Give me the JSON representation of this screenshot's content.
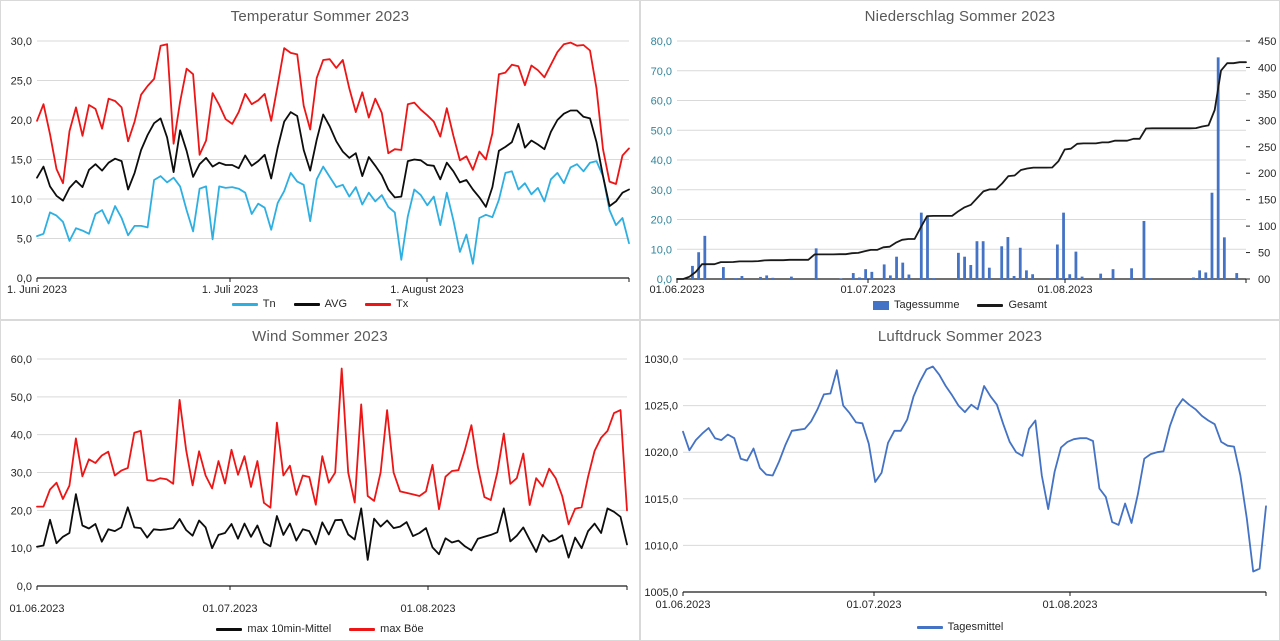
{
  "chart_data": [
    {
      "id": "temperatur",
      "type": "line",
      "title": "Temperatur Sommer 2023",
      "x_tick_labels": [
        "1. Juni 2023",
        "1. Juli 2023",
        "1. August 2023"
      ],
      "x_range": "01.06.2023 - 31.08.2023",
      "y_axis": {
        "min": 0,
        "max": 30,
        "step": 5,
        "format": "de1"
      },
      "grid": true,
      "legend_position": "bottom",
      "series": [
        {
          "name": "Tn",
          "kind": "line",
          "color": "#2eafe2",
          "values": [
            5.3,
            5.6,
            8.3,
            7.9,
            7.1,
            4.7,
            6.3,
            6,
            5.6,
            8.1,
            8.6,
            6.9,
            9.1,
            7.6,
            5.4,
            6.6,
            6.6,
            6.4,
            12.4,
            12.9,
            12.1,
            12.7,
            11.6,
            8.6,
            5.9,
            11.3,
            11.6,
            4.9,
            11.6,
            11.4,
            11.5,
            11.3,
            10.8,
            8.1,
            9.4,
            8.9,
            6.1,
            9.5,
            11,
            13.3,
            12.2,
            11.8,
            7.2,
            12.5,
            14.1,
            12.8,
            11.5,
            11.8,
            10.3,
            11.5,
            9.3,
            10.8,
            9.7,
            10.5,
            9,
            8.3,
            2.3,
            7.8,
            11.2,
            10.5,
            9.2,
            10.3,
            6.7,
            10.8,
            7.3,
            3.3,
            5.5,
            1.8,
            7.6,
            8,
            7.7,
            9.9,
            13.3,
            13.5,
            11.2,
            12,
            10.6,
            11.4,
            9.7,
            12.5,
            13.3,
            12,
            14,
            14.4,
            13.5,
            14.6,
            14.8,
            12.9,
            8.6,
            6.7,
            7.6,
            4.4
          ]
        },
        {
          "name": "AVG",
          "kind": "line",
          "color": "#0d0d0d",
          "values": [
            12.7,
            14.1,
            11.6,
            10.4,
            9.8,
            11.4,
            12.3,
            11.5,
            13.7,
            14.4,
            13.6,
            14.6,
            15.1,
            14.8,
            11.2,
            13.3,
            16.2,
            18.1,
            19.6,
            20.2,
            17.8,
            13.4,
            18.7,
            16.1,
            12.8,
            14.4,
            15.2,
            14.1,
            14.6,
            14.3,
            14.3,
            13.9,
            15.5,
            14.2,
            14.8,
            15.6,
            12.6,
            16.5,
            19.8,
            21,
            20.5,
            16.2,
            13.6,
            17.5,
            20.7,
            19.2,
            17.3,
            16,
            15.2,
            15.8,
            12.9,
            15.3,
            14.2,
            13,
            11.2,
            10.2,
            10.3,
            14.8,
            15,
            14.9,
            14.3,
            14.2,
            12.5,
            14.6,
            13.5,
            12.1,
            12.4,
            11.2,
            10.2,
            9,
            11.5,
            16.1,
            16.6,
            17.2,
            19.5,
            16.5,
            17.4,
            16.9,
            16.3,
            18.5,
            20,
            20.8,
            21.2,
            21.2,
            20.4,
            20.2,
            17.2,
            12.9,
            9.1,
            9.7,
            10.8,
            11.2
          ]
        },
        {
          "name": "Tx",
          "kind": "line",
          "color": "#ed1515",
          "values": [
            19.9,
            22,
            18.2,
            13.8,
            12,
            18.6,
            21.6,
            18,
            21.9,
            21.4,
            18.9,
            22.7,
            22.4,
            21.6,
            17.3,
            19.8,
            23.2,
            24.3,
            25.2,
            29.4,
            29.6,
            17,
            22.3,
            26.5,
            25.8,
            15.6,
            17.4,
            23.4,
            21.9,
            20.1,
            19.5,
            21,
            23.3,
            22,
            22.5,
            23.3,
            19.9,
            24.4,
            29.1,
            28.5,
            28.3,
            21.8,
            18.8,
            25.3,
            27.6,
            27.7,
            26.6,
            27.6,
            24,
            21,
            23.5,
            20.3,
            22.7,
            20.9,
            15.8,
            16.3,
            16.2,
            22,
            22.2,
            21.3,
            20.6,
            19.8,
            17.9,
            21.5,
            18,
            14.9,
            15.4,
            13.7,
            16,
            15,
            18.3,
            25.8,
            26,
            27,
            26.8,
            24.4,
            26.9,
            26.3,
            25.4,
            27,
            28.6,
            29.6,
            29.8,
            29.4,
            29.5,
            28.8,
            24,
            16.3,
            12.2,
            11.9,
            15.5,
            16.4
          ]
        }
      ]
    },
    {
      "id": "niederschlag",
      "type": "bar",
      "title": "Niederschlag Sommer 2023",
      "x_tick_labels": [
        "01.06.2023",
        "01.07.2023",
        "01.08.2023"
      ],
      "x_range": "01.06.2023 - 31.08.2023",
      "y_axis": {
        "min": 0,
        "max": 80,
        "step": 10,
        "format": "de1",
        "label_color": "#31859c"
      },
      "y2_axis": {
        "min": 0,
        "max": 450,
        "step": 50,
        "format": "int00"
      },
      "grid": true,
      "legend_position": "bottom",
      "series": [
        {
          "name": "Tagessumme",
          "kind": "bar",
          "axis": "left",
          "color": "#4472c4",
          "values": [
            0,
            0,
            4.4,
            9,
            14.5,
            0,
            0,
            4,
            0,
            0.3,
            1,
            0,
            0,
            0.7,
            1.2,
            0.4,
            0,
            0,
            0.8,
            0,
            0,
            0,
            10.3,
            0,
            0,
            0,
            0.2,
            0,
            2,
            0.5,
            3.3,
            2.4,
            0,
            4.9,
            1.2,
            7.5,
            5.5,
            1.5,
            0,
            22.3,
            21.1,
            0.3,
            0,
            0,
            0,
            8.8,
            7.5,
            4.7,
            12.7,
            12.7,
            3.8,
            0,
            11,
            14.1,
            1,
            10.5,
            2.9,
            1.6,
            0,
            0,
            0.3,
            11.6,
            22.3,
            1.6,
            9.2,
            0.8,
            0,
            0,
            1.8,
            0,
            3.3,
            0,
            0,
            3.6,
            0,
            19.5,
            0.3,
            0,
            0,
            0,
            0,
            0,
            0,
            0.5,
            2.9,
            2.2,
            29,
            74.5,
            14,
            0,
            2,
            0
          ]
        },
        {
          "name": "Gesamt",
          "kind": "line",
          "axis": "right",
          "color": "#1a1a1a",
          "derived": "cumulative_of_Tagessumme",
          "final_value": 410
        }
      ]
    },
    {
      "id": "wind",
      "type": "line",
      "title": "Wind Sommer 2023",
      "x_tick_labels": [
        "01.06.2023",
        "01.07.2023",
        "01.08.2023"
      ],
      "x_range": "01.06.2023 - 31.08.2023",
      "y_axis": {
        "min": 0,
        "max": 60,
        "step": 10,
        "format": "de1"
      },
      "grid": true,
      "legend_position": "bottom",
      "series": [
        {
          "name": "max 10min-Mittel",
          "kind": "line",
          "color": "#0d0d0d",
          "values": [
            10.4,
            10.7,
            17.5,
            11.3,
            13,
            14,
            24.3,
            16,
            15.2,
            16.4,
            11.7,
            15,
            14.5,
            15.5,
            20.8,
            15.5,
            15.3,
            12.8,
            15,
            14.8,
            15,
            15.3,
            17.7,
            14.8,
            13.3,
            17.3,
            15.5,
            10,
            13.5,
            14,
            16.4,
            12.5,
            16.5,
            13,
            16,
            11.5,
            10.5,
            18.5,
            13.5,
            16.5,
            12,
            15,
            14.5,
            11,
            16.8,
            13.6,
            17.4,
            17.5,
            13.6,
            12.3,
            20.5,
            6.9,
            17.8,
            15.7,
            17.3,
            15.3,
            15.7,
            16.9,
            13.2,
            14,
            15.3,
            10.2,
            8.4,
            12.6,
            11.5,
            12,
            10.5,
            9.4,
            12.5,
            13,
            13.5,
            14.2,
            20.5,
            11.8,
            13.3,
            15.5,
            12.2,
            9,
            13.5,
            11.7,
            12.3,
            13.4,
            7.5,
            12.8,
            10,
            14.5,
            16.5,
            14,
            20.5,
            19.6,
            18.3,
            11
          ]
        },
        {
          "name": "max Böe",
          "kind": "line",
          "color": "#ed1515",
          "values": [
            21,
            21,
            25.5,
            27.3,
            23,
            26.5,
            39,
            29,
            33.5,
            32.5,
            34.5,
            35.5,
            29.2,
            30.5,
            31.2,
            40.5,
            41,
            28,
            27.8,
            28.5,
            28.2,
            27,
            49.2,
            36,
            26.6,
            35.6,
            29.2,
            25.8,
            33,
            27.1,
            36,
            29.4,
            34.3,
            26.2,
            33,
            22,
            20.7,
            43.2,
            29.2,
            31.8,
            24.1,
            29.2,
            28.8,
            21.5,
            34.3,
            27.3,
            30,
            57.5,
            30,
            22.1,
            48,
            23.8,
            22.5,
            30,
            46.5,
            30,
            25,
            24.6,
            24.2,
            23.8,
            25,
            32,
            20.3,
            28.9,
            30.4,
            30.6,
            36,
            42.5,
            31.4,
            23.5,
            22.7,
            30,
            40.3,
            27,
            28.5,
            35,
            21.4,
            28.5,
            26.3,
            31,
            28.5,
            23.8,
            16.3,
            20.4,
            20.8,
            28.9,
            35.7,
            39.2,
            41,
            45.7,
            46.5,
            20
          ]
        }
      ]
    },
    {
      "id": "luftdruck",
      "type": "line",
      "title": "Luftdruck Sommer 2023",
      "x_tick_labels": [
        "01.06.2023",
        "01.07.2023",
        "01.08.2023"
      ],
      "x_range": "01.06.2023 - 31.08.2023",
      "y_axis": {
        "min": 1005,
        "max": 1030,
        "step": 5,
        "format": "de1"
      },
      "grid": true,
      "legend_position": "bottom",
      "series": [
        {
          "name": "Tagesmittel",
          "kind": "line",
          "color": "#4472c4",
          "values": [
            1022.2,
            1020.2,
            1021.3,
            1022,
            1022.6,
            1021.5,
            1021.3,
            1021.9,
            1021.5,
            1019.3,
            1019.1,
            1020.4,
            1018.3,
            1017.6,
            1017.5,
            1019,
            1020.8,
            1022.3,
            1022.4,
            1022.5,
            1023.3,
            1024.6,
            1026.2,
            1026.3,
            1028.8,
            1025,
            1024.2,
            1023.2,
            1023.1,
            1020.9,
            1016.8,
            1017.8,
            1021,
            1022.3,
            1022.3,
            1023.5,
            1026,
            1027.6,
            1028.9,
            1029.2,
            1028.3,
            1027.1,
            1026.1,
            1025,
            1024.3,
            1025.1,
            1024.6,
            1027.1,
            1026,
            1025.1,
            1023,
            1021.1,
            1020,
            1019.6,
            1022.5,
            1023.4,
            1017.5,
            1013.9,
            1017.9,
            1020.5,
            1021.1,
            1021.4,
            1021.5,
            1021.5,
            1021.2,
            1016.1,
            1015.2,
            1012.5,
            1012.2,
            1014.5,
            1012.4,
            1015.5,
            1019.3,
            1019.8,
            1020,
            1020.1,
            1022.8,
            1024.7,
            1025.7,
            1025.1,
            1024.6,
            1023.9,
            1023.4,
            1023,
            1021.1,
            1020.7,
            1020.6,
            1017.5,
            1012.9,
            1007.2,
            1007.5,
            1014.2
          ]
        }
      ]
    }
  ]
}
